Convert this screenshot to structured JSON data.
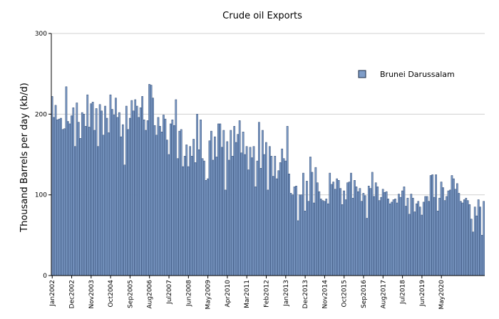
{
  "chart_data": {
    "type": "bar",
    "title": "Crude oil Exports",
    "ylabel": "Thousand Barrels per day (kb/d)",
    "xlabel": "",
    "ylim": [
      0,
      300
    ],
    "yticks": [
      0,
      100,
      200,
      300
    ],
    "grid": true,
    "legend_position": "top-right",
    "series": [
      {
        "name": "Brunei Darussalam",
        "color": "#7f9dc8",
        "start": "2002-01",
        "values": [
          222,
          196,
          211,
          193,
          194,
          195,
          181,
          182,
          234,
          191,
          188,
          198,
          208,
          160,
          214,
          190,
          170,
          202,
          200,
          185,
          224,
          184,
          213,
          215,
          180,
          207,
          160,
          212,
          204,
          174,
          210,
          195,
          177,
          224,
          206,
          199,
          220,
          196,
          202,
          172,
          187,
          137,
          210,
          181,
          195,
          217,
          204,
          218,
          210,
          196,
          208,
          222,
          193,
          180,
          192,
          237,
          236,
          220,
          186,
          174,
          196,
          185,
          178,
          199,
          194,
          168,
          150,
          188,
          193,
          186,
          218,
          145,
          179,
          181,
          135,
          148,
          162,
          135,
          160,
          148,
          169,
          140,
          200,
          156,
          193,
          145,
          142,
          118,
          120,
          167,
          179,
          143,
          172,
          147,
          188,
          188,
          159,
          180,
          106,
          166,
          143,
          180,
          148,
          185,
          165,
          175,
          192,
          152,
          178,
          150,
          160,
          131,
          159,
          146,
          160,
          110,
          142,
          190,
          133,
          180,
          150,
          165,
          106,
          160,
          148,
          123,
          148,
          120,
          130,
          140,
          157,
          145,
          142,
          185,
          126,
          102,
          100,
          110,
          111,
          68,
          100,
          100,
          127,
          80,
          117,
          92,
          147,
          128,
          90,
          134,
          115,
          104,
          95,
          93,
          92,
          95,
          89,
          127,
          113,
          116,
          107,
          120,
          118,
          108,
          88,
          105,
          94,
          115,
          116,
          127,
          96,
          118,
          110,
          104,
          108,
          92,
          102,
          99,
          71,
          111,
          108,
          128,
          98,
          115,
          110,
          93,
          97,
          107,
          103,
          104,
          95,
          89,
          91,
          94,
          95,
          90,
          101,
          97,
          105,
          110,
          86,
          96,
          76,
          101,
          96,
          79,
          89,
          92,
          85,
          75,
          91,
          98,
          98,
          92,
          124,
          125,
          97,
          125,
          80,
          96,
          116,
          109,
          93,
          98,
          105,
          106,
          124,
          120,
          107,
          114,
          102,
          92,
          90,
          94,
          96,
          93,
          88,
          70,
          54,
          85,
          74,
          94,
          85,
          50,
          92
        ]
      }
    ],
    "x_tick_labels": [
      "Jan2002",
      "Dec2002",
      "Nov2003",
      "Oct2004",
      "Sep2005",
      "Aug2006",
      "Jul2007",
      "Jun2008",
      "May2009",
      "Apr2010",
      "Mar2011",
      "Feb2012",
      "Jan2013",
      "Dec2013",
      "Nov2014",
      "Oct2015",
      "Sep2016",
      "Aug2017",
      "Jul2018",
      "Jun2019",
      "May2020"
    ]
  }
}
